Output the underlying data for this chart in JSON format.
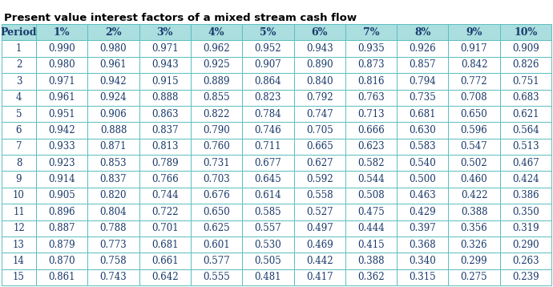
{
  "title": "Present value interest factors of a mixed stream cash flow",
  "columns": [
    "Period",
    "1%",
    "2%",
    "3%",
    "4%",
    "5%",
    "6%",
    "7%",
    "8%",
    "9%",
    "10%"
  ],
  "rows": [
    [
      1,
      0.99,
      0.98,
      0.971,
      0.962,
      0.952,
      0.943,
      0.935,
      0.926,
      0.917,
      0.909
    ],
    [
      2,
      0.98,
      0.961,
      0.943,
      0.925,
      0.907,
      0.89,
      0.873,
      0.857,
      0.842,
      0.826
    ],
    [
      3,
      0.971,
      0.942,
      0.915,
      0.889,
      0.864,
      0.84,
      0.816,
      0.794,
      0.772,
      0.751
    ],
    [
      4,
      0.961,
      0.924,
      0.888,
      0.855,
      0.823,
      0.792,
      0.763,
      0.735,
      0.708,
      0.683
    ],
    [
      5,
      0.951,
      0.906,
      0.863,
      0.822,
      0.784,
      0.747,
      0.713,
      0.681,
      0.65,
      0.621
    ],
    [
      6,
      0.942,
      0.888,
      0.837,
      0.79,
      0.746,
      0.705,
      0.666,
      0.63,
      0.596,
      0.564
    ],
    [
      7,
      0.933,
      0.871,
      0.813,
      0.76,
      0.711,
      0.665,
      0.623,
      0.583,
      0.547,
      0.513
    ],
    [
      8,
      0.923,
      0.853,
      0.789,
      0.731,
      0.677,
      0.627,
      0.582,
      0.54,
      0.502,
      0.467
    ],
    [
      9,
      0.914,
      0.837,
      0.766,
      0.703,
      0.645,
      0.592,
      0.544,
      0.5,
      0.46,
      0.424
    ],
    [
      10,
      0.905,
      0.82,
      0.744,
      0.676,
      0.614,
      0.558,
      0.508,
      0.463,
      0.422,
      0.386
    ],
    [
      11,
      0.896,
      0.804,
      0.722,
      0.65,
      0.585,
      0.527,
      0.475,
      0.429,
      0.388,
      0.35
    ],
    [
      12,
      0.887,
      0.788,
      0.701,
      0.625,
      0.557,
      0.497,
      0.444,
      0.397,
      0.356,
      0.319
    ],
    [
      13,
      0.879,
      0.773,
      0.681,
      0.601,
      0.53,
      0.469,
      0.415,
      0.368,
      0.326,
      0.29
    ],
    [
      14,
      0.87,
      0.758,
      0.661,
      0.577,
      0.505,
      0.442,
      0.388,
      0.34,
      0.299,
      0.263
    ],
    [
      15,
      0.861,
      0.743,
      0.642,
      0.555,
      0.481,
      0.417,
      0.362,
      0.315,
      0.275,
      0.239
    ]
  ],
  "header_bg": "#aadedf",
  "header_text": "#1a3a6b",
  "row_bg": "#ffffff",
  "border_color": "#5bbfbf",
  "title_color": "#000000",
  "cell_text_color": "#1a3a6b",
  "title_fontsize": 9.5,
  "header_fontsize": 9,
  "cell_fontsize": 8.5,
  "fig_width": 6.9,
  "fig_height": 3.58
}
